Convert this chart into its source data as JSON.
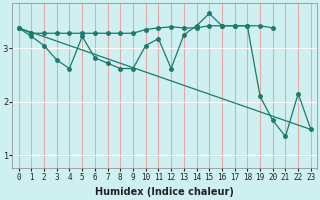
{
  "xlabel": "Humidex (Indice chaleur)",
  "ylabel": "",
  "bg_color": "#cff0f0",
  "line_color": "#1a7a6e",
  "vline_color": "#e8a8a8",
  "hline_color": "#ffffff",
  "xlim": [
    -0.5,
    23.5
  ],
  "ylim": [
    0.75,
    3.85
  ],
  "yticks": [
    1,
    2,
    3
  ],
  "xticks": [
    0,
    1,
    2,
    3,
    4,
    5,
    6,
    7,
    8,
    9,
    10,
    11,
    12,
    13,
    14,
    15,
    16,
    17,
    18,
    19,
    20,
    21,
    22,
    23
  ],
  "line1_x": [
    0,
    1,
    2,
    3,
    4,
    5,
    6,
    7,
    8,
    9,
    10,
    11,
    12,
    13,
    14,
    15,
    16,
    17,
    18,
    19,
    20
  ],
  "line1_y": [
    3.38,
    3.28,
    3.28,
    3.28,
    3.28,
    3.28,
    3.28,
    3.28,
    3.28,
    3.28,
    3.35,
    3.38,
    3.4,
    3.38,
    3.38,
    3.42,
    3.42,
    3.42,
    3.42,
    3.42,
    3.38
  ],
  "line2_x": [
    0,
    1,
    2,
    3,
    4,
    5,
    6,
    7,
    8,
    9,
    10,
    11,
    12,
    13,
    14,
    15,
    16,
    17,
    18,
    19,
    20,
    21,
    22,
    23
  ],
  "line2_y": [
    3.38,
    3.22,
    3.05,
    2.78,
    2.62,
    3.22,
    2.82,
    2.72,
    2.62,
    2.62,
    3.05,
    3.18,
    2.62,
    3.25,
    3.42,
    3.65,
    3.42,
    3.42,
    3.42,
    2.1,
    1.65,
    1.35,
    2.15,
    1.48
  ],
  "line3_x": [
    0,
    23
  ],
  "line3_y": [
    3.38,
    1.48
  ],
  "marker_size": 2.5,
  "linewidth": 0.9,
  "axis_fontsize": 7,
  "tick_fontsize": 5.5
}
